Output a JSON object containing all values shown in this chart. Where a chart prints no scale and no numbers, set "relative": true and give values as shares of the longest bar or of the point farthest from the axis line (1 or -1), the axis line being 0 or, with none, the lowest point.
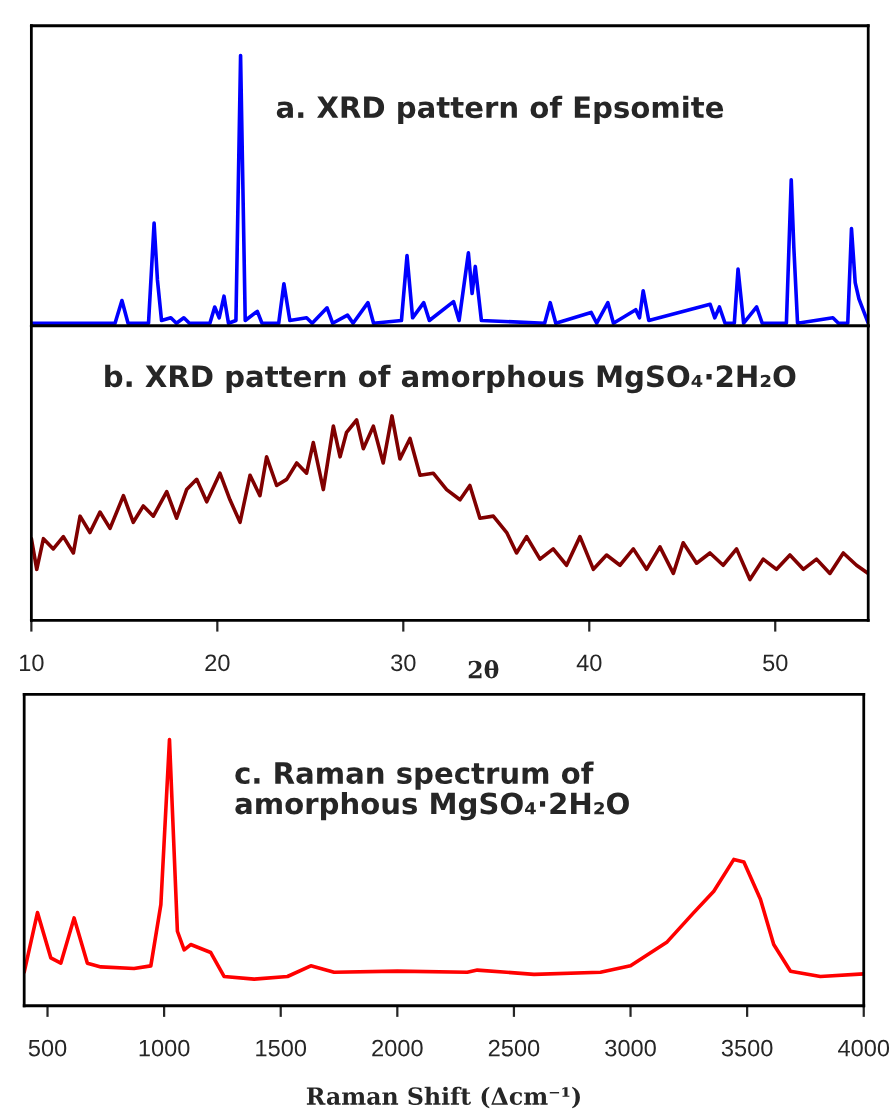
{
  "chart_data": [
    {
      "type": "line",
      "title": "a. XRD pattern of Epsomite",
      "relative": true,
      "xlim": [
        10,
        55
      ],
      "tick_labels": false,
      "grid": false,
      "series": [
        {
          "color": "#0000ff",
          "x": [
            10,
            14.5,
            14.87,
            15.2,
            16.3,
            16.6,
            16.78,
            17.0,
            17.5,
            17.8,
            18.2,
            18.5,
            19.6,
            19.86,
            20.1,
            20.36,
            20.6,
            21.0,
            21.25,
            21.5,
            22.15,
            22.4,
            23.3,
            23.58,
            23.9,
            24.8,
            25.1,
            25.9,
            26.2,
            27.0,
            27.3,
            28.1,
            28.4,
            29.9,
            30.2,
            30.5,
            31.1,
            31.4,
            32.7,
            33.0,
            33.5,
            33.7,
            33.87,
            34.2,
            37.6,
            37.9,
            38.2,
            40.1,
            40.4,
            41.0,
            41.3,
            42.5,
            42.7,
            42.9,
            43.2,
            46.5,
            46.75,
            47.0,
            47.3,
            47.8,
            48.0,
            48.3,
            49.0,
            49.3,
            50.6,
            50.86,
            51.0,
            51.2,
            53.1,
            53.4,
            53.9,
            54.1,
            54.3,
            54.5,
            55
          ],
          "values": [
            0.01,
            0.01,
            0.094,
            0.01,
            0.01,
            0.38,
            0.17,
            0.02,
            0.03,
            0.01,
            0.03,
            0.01,
            0.01,
            0.07,
            0.03,
            0.11,
            0.01,
            0.02,
            1.0,
            0.02,
            0.054,
            0.01,
            0.01,
            0.156,
            0.02,
            0.03,
            0.01,
            0.067,
            0.01,
            0.04,
            0.01,
            0.086,
            0.01,
            0.02,
            0.26,
            0.03,
            0.086,
            0.02,
            0.09,
            0.02,
            0.27,
            0.12,
            0.22,
            0.02,
            0.01,
            0.086,
            0.01,
            0.05,
            0.01,
            0.086,
            0.01,
            0.06,
            0.03,
            0.13,
            0.02,
            0.08,
            0.03,
            0.07,
            0.01,
            0.01,
            0.21,
            0.01,
            0.07,
            0.01,
            0.01,
            0.54,
            0.29,
            0.01,
            0.03,
            0.01,
            0.01,
            0.36,
            0.16,
            0.1,
            0.01
          ]
        }
      ]
    },
    {
      "type": "line",
      "title": "b. XRD pattern of amorphous MgSO₄·2H₂O",
      "xlabel": "2θ",
      "relative": true,
      "xlim": [
        10,
        55
      ],
      "xticks": [
        10,
        20,
        30,
        40,
        50
      ],
      "tick_labels": "x",
      "grid": false,
      "series": [
        {
          "color": "#800000",
          "x": [
            10.0,
            10.29,
            10.65,
            11.18,
            11.72,
            12.26,
            12.62,
            13.15,
            13.69,
            14.23,
            14.95,
            15.48,
            16.02,
            16.56,
            17.28,
            17.81,
            18.35,
            18.89,
            19.43,
            20.14,
            20.68,
            21.22,
            21.76,
            22.29,
            22.65,
            23.19,
            23.73,
            24.27,
            24.8,
            25.16,
            25.7,
            26.24,
            26.6,
            26.95,
            27.49,
            27.85,
            28.39,
            28.92,
            29.39,
            29.82,
            30.36,
            30.9,
            31.61,
            32.33,
            33.05,
            33.58,
            34.12,
            34.84,
            35.56,
            36.09,
            36.63,
            37.35,
            38.06,
            38.78,
            39.5,
            40.22,
            40.93,
            41.65,
            42.37,
            43.08,
            43.8,
            44.52,
            45.05,
            45.77,
            46.49,
            47.2,
            47.92,
            48.64,
            49.35,
            50.07,
            50.79,
            51.51,
            52.22,
            52.94,
            53.66,
            54.37,
            55.0
          ],
          "values": [
            0.4,
            0.25,
            0.4,
            0.35,
            0.41,
            0.33,
            0.51,
            0.43,
            0.53,
            0.45,
            0.61,
            0.48,
            0.56,
            0.51,
            0.63,
            0.5,
            0.64,
            0.69,
            0.58,
            0.72,
            0.59,
            0.48,
            0.71,
            0.61,
            0.8,
            0.66,
            0.69,
            0.77,
            0.72,
            0.87,
            0.64,
            0.95,
            0.8,
            0.92,
            0.98,
            0.84,
            0.95,
            0.77,
            1.0,
            0.79,
            0.89,
            0.71,
            0.72,
            0.64,
            0.59,
            0.66,
            0.5,
            0.51,
            0.43,
            0.33,
            0.41,
            0.3,
            0.35,
            0.27,
            0.41,
            0.25,
            0.32,
            0.27,
            0.35,
            0.25,
            0.36,
            0.23,
            0.38,
            0.28,
            0.33,
            0.27,
            0.35,
            0.2,
            0.3,
            0.25,
            0.32,
            0.25,
            0.3,
            0.23,
            0.33,
            0.27,
            0.23
          ]
        }
      ]
    },
    {
      "type": "line",
      "title": "c. Raman spectrum of\namorphous MgSO₄·2H₂O",
      "xlabel": "Raman Shift (Δcm⁻¹)",
      "relative": true,
      "xlim": [
        400,
        4000
      ],
      "xticks": [
        500,
        1000,
        1500,
        2000,
        2500,
        3000,
        3500,
        4000
      ],
      "tick_labels": "x",
      "grid": false,
      "series": [
        {
          "color": "#ff0000",
          "x": [
            400,
            457,
            514,
            557,
            614,
            671,
            729,
            871,
            943,
            986,
            1023,
            1057,
            1086,
            1114,
            1200,
            1257,
            1386,
            1529,
            1629,
            1729,
            2000,
            2300,
            2343,
            2586,
            2871,
            3000,
            3157,
            3271,
            3357,
            3443,
            3486,
            3557,
            3614,
            3686,
            3814,
            4000
          ],
          "values": [
            0.126,
            0.35,
            0.18,
            0.16,
            0.33,
            0.16,
            0.146,
            0.14,
            0.15,
            0.38,
            1.0,
            0.28,
            0.21,
            0.23,
            0.2,
            0.11,
            0.1,
            0.11,
            0.15,
            0.126,
            0.13,
            0.126,
            0.134,
            0.118,
            0.126,
            0.15,
            0.24,
            0.35,
            0.43,
            0.55,
            0.54,
            0.4,
            0.23,
            0.13,
            0.11,
            0.12
          ]
        }
      ]
    }
  ]
}
